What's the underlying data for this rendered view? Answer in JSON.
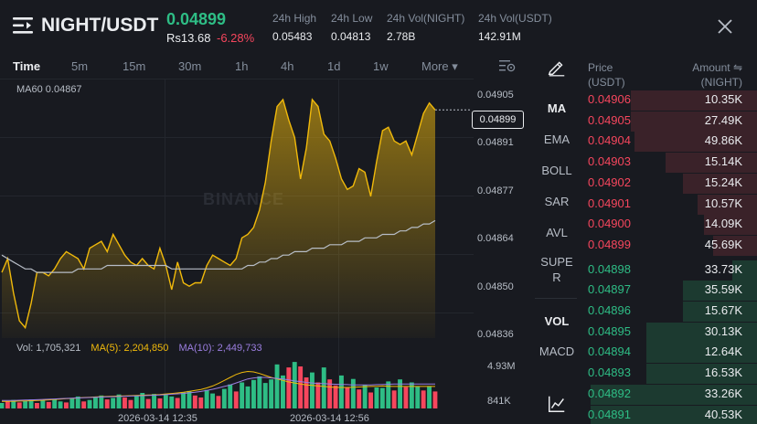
{
  "header": {
    "pair": "NIGHT/USDT",
    "price": "0.04899",
    "fiat_price": "Rs13.68",
    "change_pct": "-6.28%",
    "stats": [
      {
        "label": "24h High",
        "value": "0.05483"
      },
      {
        "label": "24h Low",
        "value": "0.04813"
      },
      {
        "label": "24h Vol(NIGHT)",
        "value": "2.78B"
      },
      {
        "label": "24h Vol(USDT)",
        "value": "142.91M"
      }
    ]
  },
  "timeframes": [
    {
      "label": "Time",
      "active": true
    },
    {
      "label": "5m"
    },
    {
      "label": "15m"
    },
    {
      "label": "30m"
    },
    {
      "label": "1h"
    },
    {
      "label": "4h"
    },
    {
      "label": "1d"
    },
    {
      "label": "1w"
    },
    {
      "label": "More ▾"
    }
  ],
  "chart": {
    "ma60_label": "MA60 0.04867",
    "last_price_label": "0.04899",
    "watermark": "BINANCE",
    "vol_label": "Vol: 1,705,321",
    "ma5_label": "MA(5): 2,204,850",
    "ma10_label": "MA(10): 2,449,733",
    "vol_ticks": [
      "4.93M",
      "841K"
    ],
    "x_ticks": [
      "2026-03-14 12:35",
      "2026-03-14 12:56"
    ],
    "colors": {
      "line": "#f0b90b",
      "ma60": "#b7bdc6",
      "ma5": "#f0b90b",
      "ma10": "#9b7ee0",
      "up": "#2ebd85",
      "down": "#f6465d"
    }
  },
  "chart_data": {
    "type": "area",
    "title": "",
    "xlabel": "",
    "ylabel": "",
    "ylim": [
      0.04833,
      0.04907
    ],
    "y_ticks": [
      "0.04905",
      "0.04891",
      "0.04877",
      "0.04864",
      "0.04850",
      "0.04836"
    ],
    "series": [
      {
        "name": "price",
        "values": [
          0.04852,
          0.04856,
          0.04846,
          0.04838,
          0.04836,
          0.04843,
          0.04852,
          0.04852,
          0.04851,
          0.04853,
          0.04856,
          0.04858,
          0.04857,
          0.04856,
          0.04853,
          0.04859,
          0.0486,
          0.04861,
          0.04858,
          0.04863,
          0.0486,
          0.04857,
          0.04855,
          0.04854,
          0.04856,
          0.04854,
          0.04853,
          0.04859,
          0.04854,
          0.04847,
          0.04855,
          0.04849,
          0.04848,
          0.04849,
          0.04849,
          0.04854,
          0.04857,
          0.04856,
          0.04855,
          0.04854,
          0.04856,
          0.04862,
          0.04863,
          0.04865,
          0.0487,
          0.04878,
          0.0489,
          0.049,
          0.04902,
          0.04896,
          0.04891,
          0.04879,
          0.04888,
          0.04902,
          0.049,
          0.04892,
          0.0489,
          0.04885,
          0.04879,
          0.04876,
          0.04877,
          0.04882,
          0.04881,
          0.04874,
          0.04884,
          0.04893,
          0.04894,
          0.0489,
          0.04889,
          0.0489,
          0.04886,
          0.04892,
          0.04898,
          0.04901,
          0.04899
        ]
      },
      {
        "name": "MA60",
        "values": [
          0.04857,
          0.04856,
          0.04855,
          0.04854,
          0.04853,
          0.04853,
          0.04852,
          0.04852,
          0.04852,
          0.04852,
          0.04852,
          0.04852,
          0.04852,
          0.04853,
          0.04853,
          0.04853,
          0.04853,
          0.04853,
          0.04854,
          0.04854,
          0.04854,
          0.04854,
          0.04854,
          0.04854,
          0.04854,
          0.04854,
          0.04854,
          0.04854,
          0.04854,
          0.04853,
          0.04853,
          0.04853,
          0.04853,
          0.04853,
          0.04853,
          0.04853,
          0.04853,
          0.04853,
          0.04853,
          0.04853,
          0.04853,
          0.04853,
          0.04854,
          0.04854,
          0.04855,
          0.04855,
          0.04856,
          0.04856,
          0.04857,
          0.04857,
          0.04858,
          0.04858,
          0.04858,
          0.04859,
          0.04859,
          0.04859,
          0.0486,
          0.0486,
          0.0486,
          0.04861,
          0.04861,
          0.04861,
          0.04862,
          0.04862,
          0.04862,
          0.04863,
          0.04863,
          0.04863,
          0.04864,
          0.04864,
          0.04865,
          0.04865,
          0.04866,
          0.04866,
          0.04867
        ]
      }
    ],
    "volume": {
      "values": [
        0.55,
        0.7,
        0.85,
        0.6,
        0.75,
        0.9,
        0.55,
        0.8,
        0.65,
        0.95,
        0.7,
        0.6,
        1.05,
        1.2,
        0.7,
        0.85,
        1.1,
        1.3,
        0.9,
        1.05,
        1.4,
        1.1,
        0.85,
        1.25,
        1.55,
        0.95,
        1.45,
        1.0,
        1.35,
        1.2,
        1.05,
        1.6,
        1.75,
        1.3,
        1.1,
        1.85,
        1.5,
        1.25,
        1.95,
        2.4,
        1.7,
        2.6,
        2.2,
        2.85,
        3.2,
        2.55,
        2.9,
        4.4,
        3.3,
        4.1,
        4.65,
        4.2,
        3.1,
        3.6,
        2.6,
        4.1,
        2.9,
        2.3,
        3.3,
        2.1,
        2.95,
        1.9,
        2.35,
        1.6,
        2.1,
        2.05,
        2.7,
        1.8,
        2.9,
        2.15,
        2.6,
        2.2,
        1.8,
        2.25,
        1.7
      ],
      "up": [
        1,
        0,
        1,
        0,
        1,
        1,
        0,
        1,
        0,
        1,
        1,
        0,
        1,
        1,
        0,
        1,
        1,
        1,
        0,
        1,
        1,
        0,
        0,
        1,
        1,
        0,
        1,
        0,
        1,
        1,
        0,
        1,
        1,
        0,
        0,
        1,
        1,
        0,
        1,
        1,
        0,
        1,
        1,
        1,
        1,
        1,
        1,
        1,
        1,
        0,
        1,
        0,
        0,
        1,
        0,
        1,
        0,
        0,
        1,
        0,
        1,
        0,
        1,
        0,
        1,
        1,
        1,
        0,
        1,
        0,
        1,
        1,
        0,
        1,
        0
      ],
      "ma5": [
        0.7,
        0.7,
        0.72,
        0.74,
        0.76,
        0.78,
        0.8,
        0.82,
        0.86,
        0.9,
        0.94,
        0.98,
        1.0,
        1.05,
        1.1,
        1.12,
        1.15,
        1.18,
        1.2,
        1.22,
        1.24,
        1.26,
        1.28,
        1.3,
        1.32,
        1.34,
        1.36,
        1.4,
        1.45,
        1.5,
        1.55,
        1.62,
        1.7,
        1.8,
        1.9,
        2.05,
        2.25,
        2.5,
        2.8,
        3.1,
        3.4,
        3.6,
        3.7,
        3.65,
        3.5,
        3.3,
        3.1,
        2.95,
        2.8,
        2.65,
        2.55,
        2.45,
        2.35,
        2.3,
        2.25,
        2.2,
        2.15,
        2.1,
        2.1,
        2.1,
        2.12,
        2.15,
        2.18,
        2.2,
        2.22,
        2.25,
        2.22,
        2.2,
        2.2,
        2.2,
        2.2,
        2.2,
        2.2,
        2.2,
        2.2
      ],
      "ma10": [
        0.8,
        0.8,
        0.8,
        0.82,
        0.84,
        0.86,
        0.88,
        0.9,
        0.92,
        0.95,
        0.98,
        1.0,
        1.02,
        1.05,
        1.08,
        1.1,
        1.12,
        1.14,
        1.16,
        1.18,
        1.2,
        1.22,
        1.24,
        1.26,
        1.28,
        1.3,
        1.32,
        1.35,
        1.38,
        1.42,
        1.46,
        1.5,
        1.56,
        1.62,
        1.7,
        1.8,
        1.92,
        2.05,
        2.2,
        2.35,
        2.55,
        2.75,
        2.95,
        3.05,
        3.1,
        3.1,
        3.05,
        3.0,
        2.95,
        2.85,
        2.75,
        2.68,
        2.6,
        2.55,
        2.5,
        2.48,
        2.45,
        2.42,
        2.4,
        2.38,
        2.36,
        2.35,
        2.35,
        2.36,
        2.38,
        2.4,
        2.42,
        2.44,
        2.45,
        2.45,
        2.45,
        2.45,
        2.45,
        2.45,
        2.45
      ]
    }
  },
  "indicators": [
    "MA",
    "EMA",
    "BOLL",
    "SAR",
    "AVL",
    "SUPE",
    "R",
    "VOL",
    "MACD"
  ],
  "orderbook": {
    "price_header": [
      "Price",
      "(USDT)"
    ],
    "amount_header": [
      "Amount ⇋",
      "(NIGHT)"
    ],
    "asks": [
      {
        "price": "0.04906",
        "amount": "10.35K",
        "depth": 0.72
      },
      {
        "price": "0.04905",
        "amount": "27.49K",
        "depth": 0.72
      },
      {
        "price": "0.04904",
        "amount": "49.86K",
        "depth": 0.7
      },
      {
        "price": "0.04903",
        "amount": "15.14K",
        "depth": 0.52
      },
      {
        "price": "0.04902",
        "amount": "15.24K",
        "depth": 0.42
      },
      {
        "price": "0.04901",
        "amount": "10.57K",
        "depth": 0.34
      },
      {
        "price": "0.04900",
        "amount": "14.09K",
        "depth": 0.3
      },
      {
        "price": "0.04899",
        "amount": "45.69K",
        "depth": 0.25
      }
    ],
    "bids": [
      {
        "price": "0.04898",
        "amount": "33.73K",
        "depth": 0.14
      },
      {
        "price": "0.04897",
        "amount": "35.59K",
        "depth": 0.42
      },
      {
        "price": "0.04896",
        "amount": "15.67K",
        "depth": 0.42
      },
      {
        "price": "0.04895",
        "amount": "30.13K",
        "depth": 0.63
      },
      {
        "price": "0.04894",
        "amount": "12.64K",
        "depth": 0.63
      },
      {
        "price": "0.04893",
        "amount": "16.53K",
        "depth": 0.63
      },
      {
        "price": "0.04892",
        "amount": "33.26K",
        "depth": 0.95
      },
      {
        "price": "0.04891",
        "amount": "40.53K",
        "depth": 0.95
      }
    ]
  }
}
